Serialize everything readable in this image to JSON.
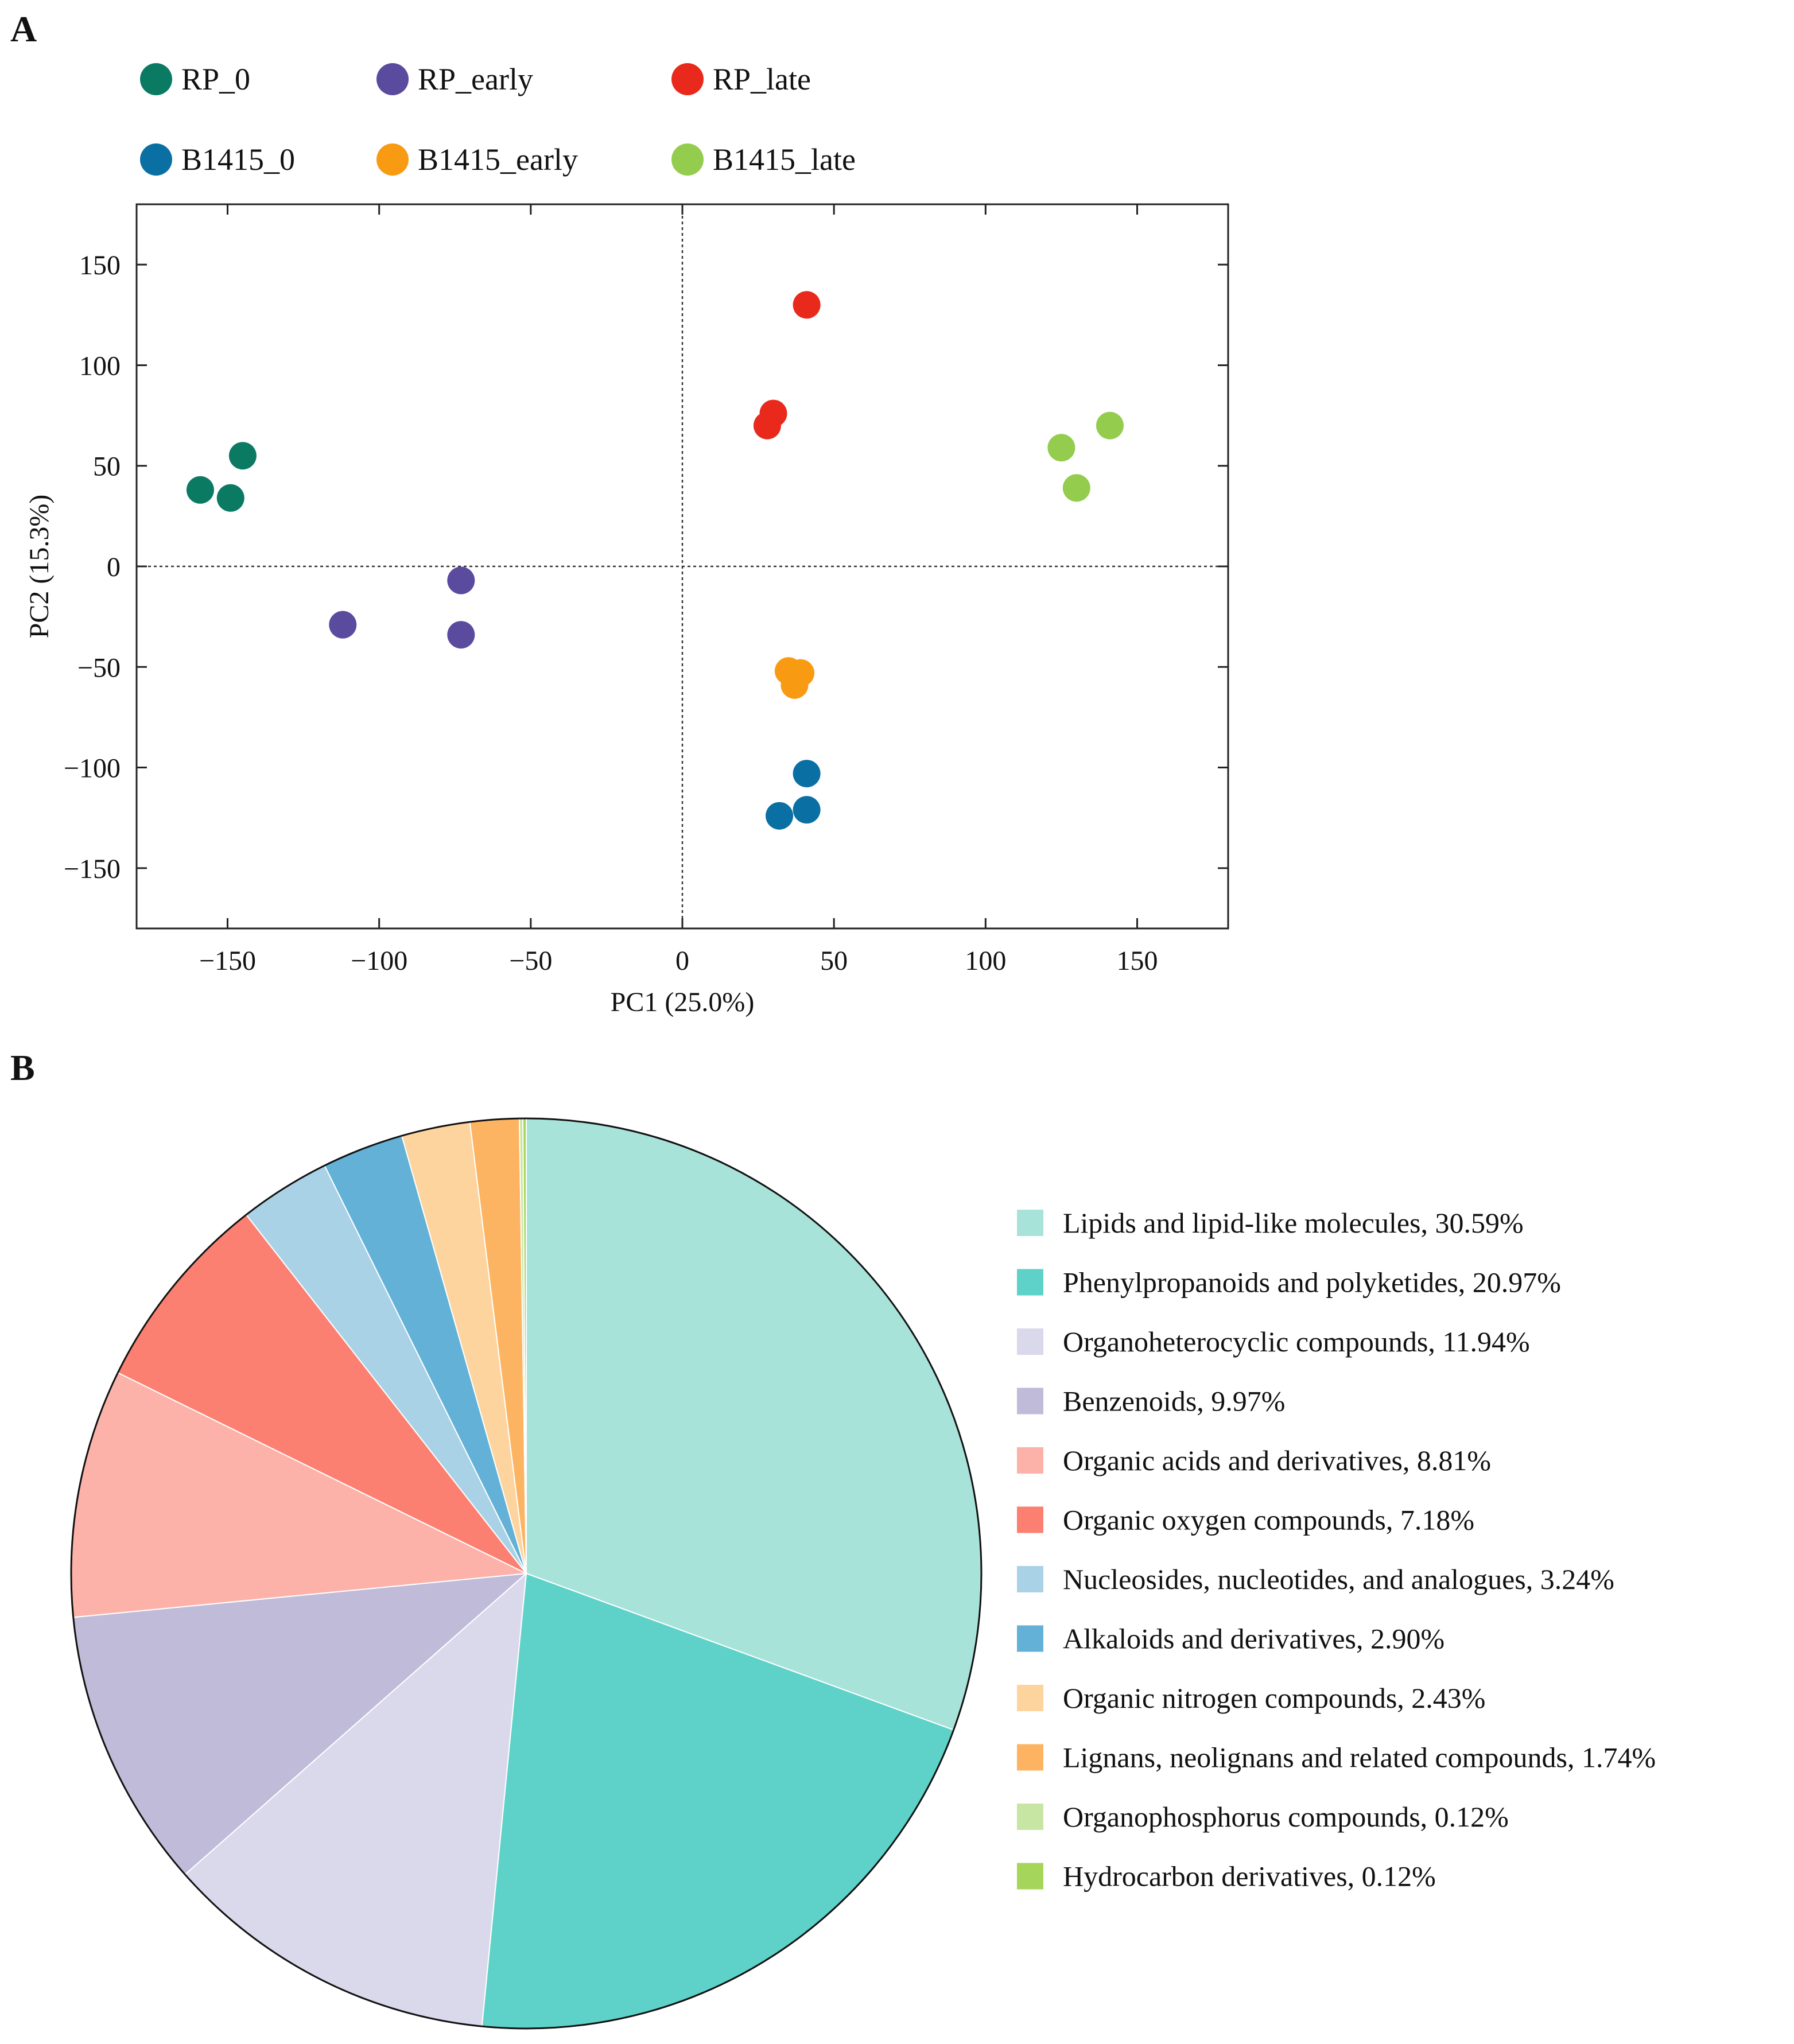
{
  "chart_data": [
    {
      "panel": "A",
      "type": "scatter",
      "title": "",
      "xlabel": "PC1 (25.0%)",
      "ylabel": "PC2 (15.3%)",
      "xlim": [
        -180,
        180
      ],
      "ylim": [
        -180,
        180
      ],
      "xticks": [
        -150,
        -100,
        -50,
        0,
        50,
        100,
        150
      ],
      "yticks": [
        150,
        100,
        50,
        0,
        -50,
        -100,
        -150
      ],
      "xtick_labels": [
        "−150",
        "−100",
        "−50",
        "0",
        "50",
        "100",
        "150"
      ],
      "ytick_labels": [
        "150",
        "100",
        "50",
        "0",
        "−50",
        "−100",
        "−150"
      ],
      "reference_lines": "dashed lines at x = 0 and y = 0",
      "legend_position": "top",
      "series": [
        {
          "name": "RP_0",
          "color": "#0a7a63",
          "points": [
            [
              -159,
              38
            ],
            [
              -149,
              34
            ],
            [
              -145,
              55
            ]
          ]
        },
        {
          "name": "RP_early",
          "color": "#5b4b9e",
          "points": [
            [
              -112,
              -29
            ],
            [
              -73,
              -7
            ],
            [
              -73,
              -34
            ]
          ]
        },
        {
          "name": "RP_late",
          "color": "#e8291c",
          "points": [
            [
              41,
              130
            ],
            [
              30,
              76
            ],
            [
              28,
              70
            ]
          ]
        },
        {
          "name": "B1415_0",
          "color": "#0a6fa3",
          "points": [
            [
              41,
              -103
            ],
            [
              41,
              -121
            ],
            [
              32,
              -124
            ]
          ]
        },
        {
          "name": "B1415_early",
          "color": "#f89b13",
          "points": [
            [
              35,
              -52
            ],
            [
              39,
              -53
            ],
            [
              37,
              -59
            ]
          ]
        },
        {
          "name": "B1415_late",
          "color": "#94cc4e",
          "points": [
            [
              125,
              59
            ],
            [
              141,
              70
            ],
            [
              130,
              39
            ]
          ]
        }
      ]
    },
    {
      "panel": "B",
      "type": "pie",
      "title": "",
      "legend_position": "right",
      "slices": [
        {
          "label": "Lipids and lipid-like molecules, 30.59%",
          "value": 30.59,
          "color": "#a8e3da"
        },
        {
          "label": "Phenylpropanoids and polyketides, 20.97%",
          "value": 20.97,
          "color": "#5ed2c9"
        },
        {
          "label": "Organoheterocyclic compounds, 11.94%",
          "value": 11.94,
          "color": "#dad8eb"
        },
        {
          "label": "Benzenoids, 9.97%",
          "value": 9.97,
          "color": "#bfbbd9"
        },
        {
          "label": "Organic acids and derivatives, 8.81%",
          "value": 8.81,
          "color": "#fcb2a9"
        },
        {
          "label": "Organic oxygen compounds, 7.18%",
          "value": 7.18,
          "color": "#fb8072"
        },
        {
          "label": "Nucleosides, nucleotides, and analogues, 3.24%",
          "value": 3.24,
          "color": "#a9d2e7"
        },
        {
          "label": "Alkaloids and derivatives, 2.90%",
          "value": 2.9,
          "color": "#63b1d6"
        },
        {
          "label": "Organic nitrogen compounds, 2.43%",
          "value": 2.43,
          "color": "#fdd49e"
        },
        {
          "label": "Lignans, neolignans and related compounds, 1.74%",
          "value": 1.74,
          "color": "#fdb462"
        },
        {
          "label": "Organophosphorus compounds, 0.12%",
          "value": 0.12,
          "color": "#c7e6a4"
        },
        {
          "label": "Hydrocarbon derivatives, 0.12%",
          "value": 0.12,
          "color": "#a5d65b"
        }
      ]
    }
  ],
  "panels": {
    "a": "A",
    "b": "B"
  }
}
